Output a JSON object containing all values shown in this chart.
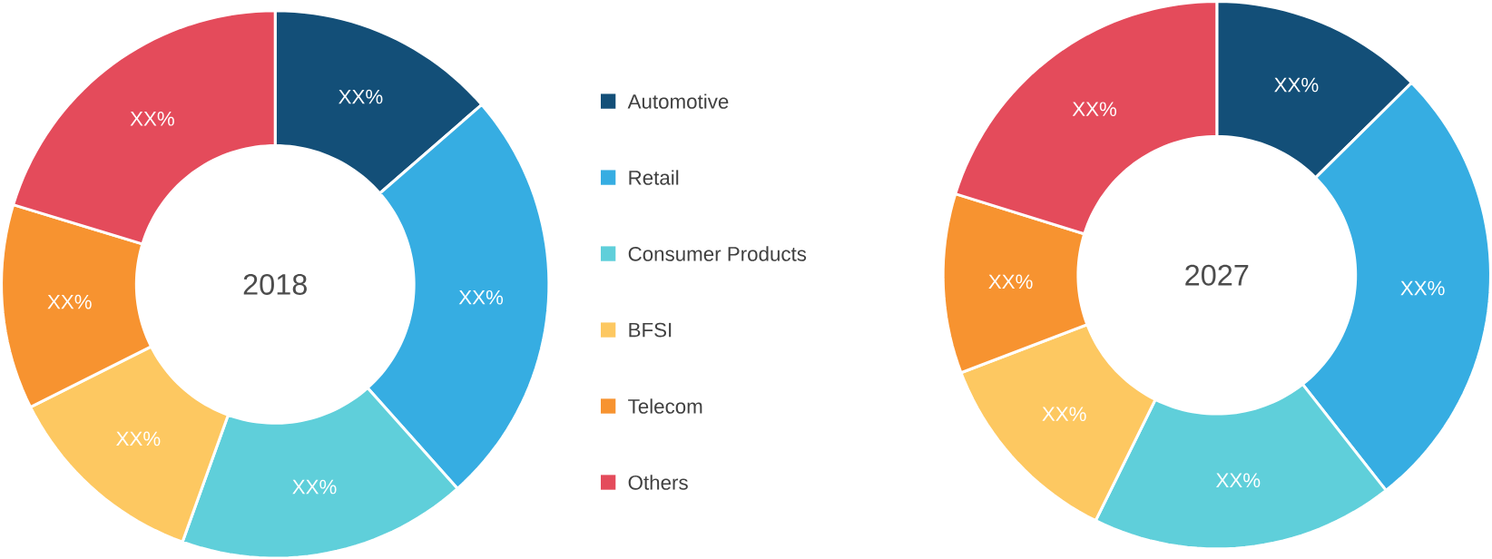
{
  "chart_data": [
    {
      "type": "donut",
      "title": "2018",
      "categories": [
        "Automotive",
        "Retail",
        "Consumer Products",
        "BFSI",
        "Telecom",
        "Others"
      ],
      "values": [
        13.6,
        24.8,
        17.1,
        12.1,
        12.1,
        20.3
      ],
      "colors": [
        "#134f78",
        "#36ade2",
        "#5fcfda",
        "#fdc861",
        "#f79330",
        "#e44b5b"
      ],
      "value_labels": [
        "XX%",
        "XX%",
        "XX%",
        "XX%",
        "XX%",
        "XX%"
      ],
      "legend": "right"
    },
    {
      "type": "donut",
      "title": "2027",
      "categories": [
        null,
        null,
        null,
        null,
        null,
        null
      ],
      "values": [
        12.6,
        26.8,
        17.9,
        11.9,
        10.6,
        20.2
      ],
      "colors": [
        "#134f78",
        "#36ade2",
        "#5fcfda",
        "#fdc861",
        "#f79330",
        "#e44b5b"
      ],
      "value_labels": [
        "XX%",
        "XX%",
        "XX%",
        "XX%",
        "XX%",
        "XX%"
      ]
    }
  ]
}
